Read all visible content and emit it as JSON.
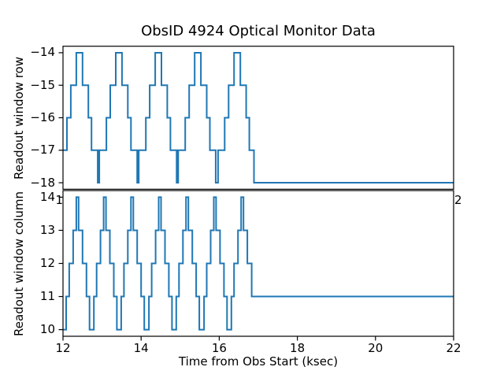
{
  "figure": {
    "title": "ObsID 4924 Optical Monitor Data",
    "xlabel": "Time from Obs Start (ksec)",
    "background": "#ffffff",
    "line_color": "#1f77b4",
    "axis_color": "#000000",
    "overlap_artifacts": {
      "left_fragment": "1",
      "right_fragment": "2"
    }
  },
  "chart_data": [
    {
      "type": "line",
      "drawstyle": "steps-post",
      "name": "readout-window-row",
      "ylabel": "Readout window row",
      "xlim": [
        12,
        22
      ],
      "ylim": [
        -18.2,
        -13.8
      ],
      "grid": false,
      "legend": false,
      "yticks": [
        {
          "value": -14,
          "label": "−14"
        },
        {
          "value": -15,
          "label": "−15"
        },
        {
          "value": -16,
          "label": "−16"
        },
        {
          "value": -17,
          "label": "−17"
        },
        {
          "value": -18,
          "label": "−18"
        }
      ],
      "xticks": [],
      "x_end": 22,
      "points": [
        [
          12.0,
          -17
        ],
        [
          12.1,
          -16
        ],
        [
          12.2,
          -15
        ],
        [
          12.34,
          -14
        ],
        [
          12.5,
          -15
        ],
        [
          12.65,
          -16
        ],
        [
          12.73,
          -17
        ],
        [
          12.89,
          -18
        ],
        [
          12.93,
          -17
        ],
        [
          13.11,
          -16
        ],
        [
          13.21,
          -15
        ],
        [
          13.35,
          -14
        ],
        [
          13.51,
          -15
        ],
        [
          13.66,
          -16
        ],
        [
          13.74,
          -17
        ],
        [
          13.9,
          -18
        ],
        [
          13.94,
          -17
        ],
        [
          14.12,
          -16
        ],
        [
          14.22,
          -15
        ],
        [
          14.36,
          -14
        ],
        [
          14.52,
          -15
        ],
        [
          14.67,
          -16
        ],
        [
          14.75,
          -17
        ],
        [
          14.91,
          -18
        ],
        [
          14.95,
          -17
        ],
        [
          15.13,
          -16
        ],
        [
          15.23,
          -15
        ],
        [
          15.37,
          -14
        ],
        [
          15.53,
          -15
        ],
        [
          15.68,
          -16
        ],
        [
          15.76,
          -17
        ],
        [
          15.91,
          -18
        ],
        [
          15.97,
          -17
        ],
        [
          16.14,
          -16
        ],
        [
          16.24,
          -15
        ],
        [
          16.38,
          -14
        ],
        [
          16.54,
          -15
        ],
        [
          16.69,
          -16
        ],
        [
          16.77,
          -17
        ],
        [
          16.89,
          -18
        ]
      ]
    },
    {
      "type": "line",
      "drawstyle": "steps-post",
      "name": "readout-window-column",
      "ylabel": "Readout window column",
      "xlim": [
        12,
        22
      ],
      "ylim": [
        9.8,
        14.2
      ],
      "grid": false,
      "legend": false,
      "yticks": [
        {
          "value": 14,
          "label": "14"
        },
        {
          "value": 13,
          "label": "13"
        },
        {
          "value": 12,
          "label": "12"
        },
        {
          "value": 11,
          "label": "11"
        },
        {
          "value": 10,
          "label": "10"
        }
      ],
      "xticks": [
        {
          "value": 12,
          "label": "12"
        },
        {
          "value": 14,
          "label": "14"
        },
        {
          "value": 16,
          "label": "16"
        },
        {
          "value": 18,
          "label": "18"
        },
        {
          "value": 20,
          "label": "20"
        },
        {
          "value": 22,
          "label": "22"
        }
      ],
      "x_end": 22,
      "points": [
        [
          12.0,
          10
        ],
        [
          12.08,
          11
        ],
        [
          12.16,
          12
        ],
        [
          12.26,
          13
        ],
        [
          12.34,
          14
        ],
        [
          12.4,
          13
        ],
        [
          12.5,
          12
        ],
        [
          12.6,
          11
        ],
        [
          12.68,
          10
        ],
        [
          12.79,
          11
        ],
        [
          12.86,
          12
        ],
        [
          12.96,
          13
        ],
        [
          13.04,
          14
        ],
        [
          13.1,
          13
        ],
        [
          13.2,
          12
        ],
        [
          13.3,
          11
        ],
        [
          13.38,
          10
        ],
        [
          13.49,
          11
        ],
        [
          13.56,
          12
        ],
        [
          13.66,
          13
        ],
        [
          13.74,
          14
        ],
        [
          13.8,
          13
        ],
        [
          13.9,
          12
        ],
        [
          14.0,
          11
        ],
        [
          14.08,
          10
        ],
        [
          14.2,
          11
        ],
        [
          14.27,
          12
        ],
        [
          14.37,
          13
        ],
        [
          14.45,
          14
        ],
        [
          14.51,
          13
        ],
        [
          14.61,
          12
        ],
        [
          14.71,
          11
        ],
        [
          14.79,
          10
        ],
        [
          14.9,
          11
        ],
        [
          14.97,
          12
        ],
        [
          15.07,
          13
        ],
        [
          15.15,
          14
        ],
        [
          15.21,
          13
        ],
        [
          15.31,
          12
        ],
        [
          15.41,
          11
        ],
        [
          15.49,
          10
        ],
        [
          15.61,
          11
        ],
        [
          15.68,
          12
        ],
        [
          15.78,
          13
        ],
        [
          15.86,
          14
        ],
        [
          15.92,
          13
        ],
        [
          16.02,
          12
        ],
        [
          16.12,
          11
        ],
        [
          16.2,
          10
        ],
        [
          16.31,
          11
        ],
        [
          16.38,
          12
        ],
        [
          16.48,
          13
        ],
        [
          16.56,
          14
        ],
        [
          16.62,
          13
        ],
        [
          16.72,
          12
        ],
        [
          16.83,
          11
        ]
      ]
    }
  ]
}
